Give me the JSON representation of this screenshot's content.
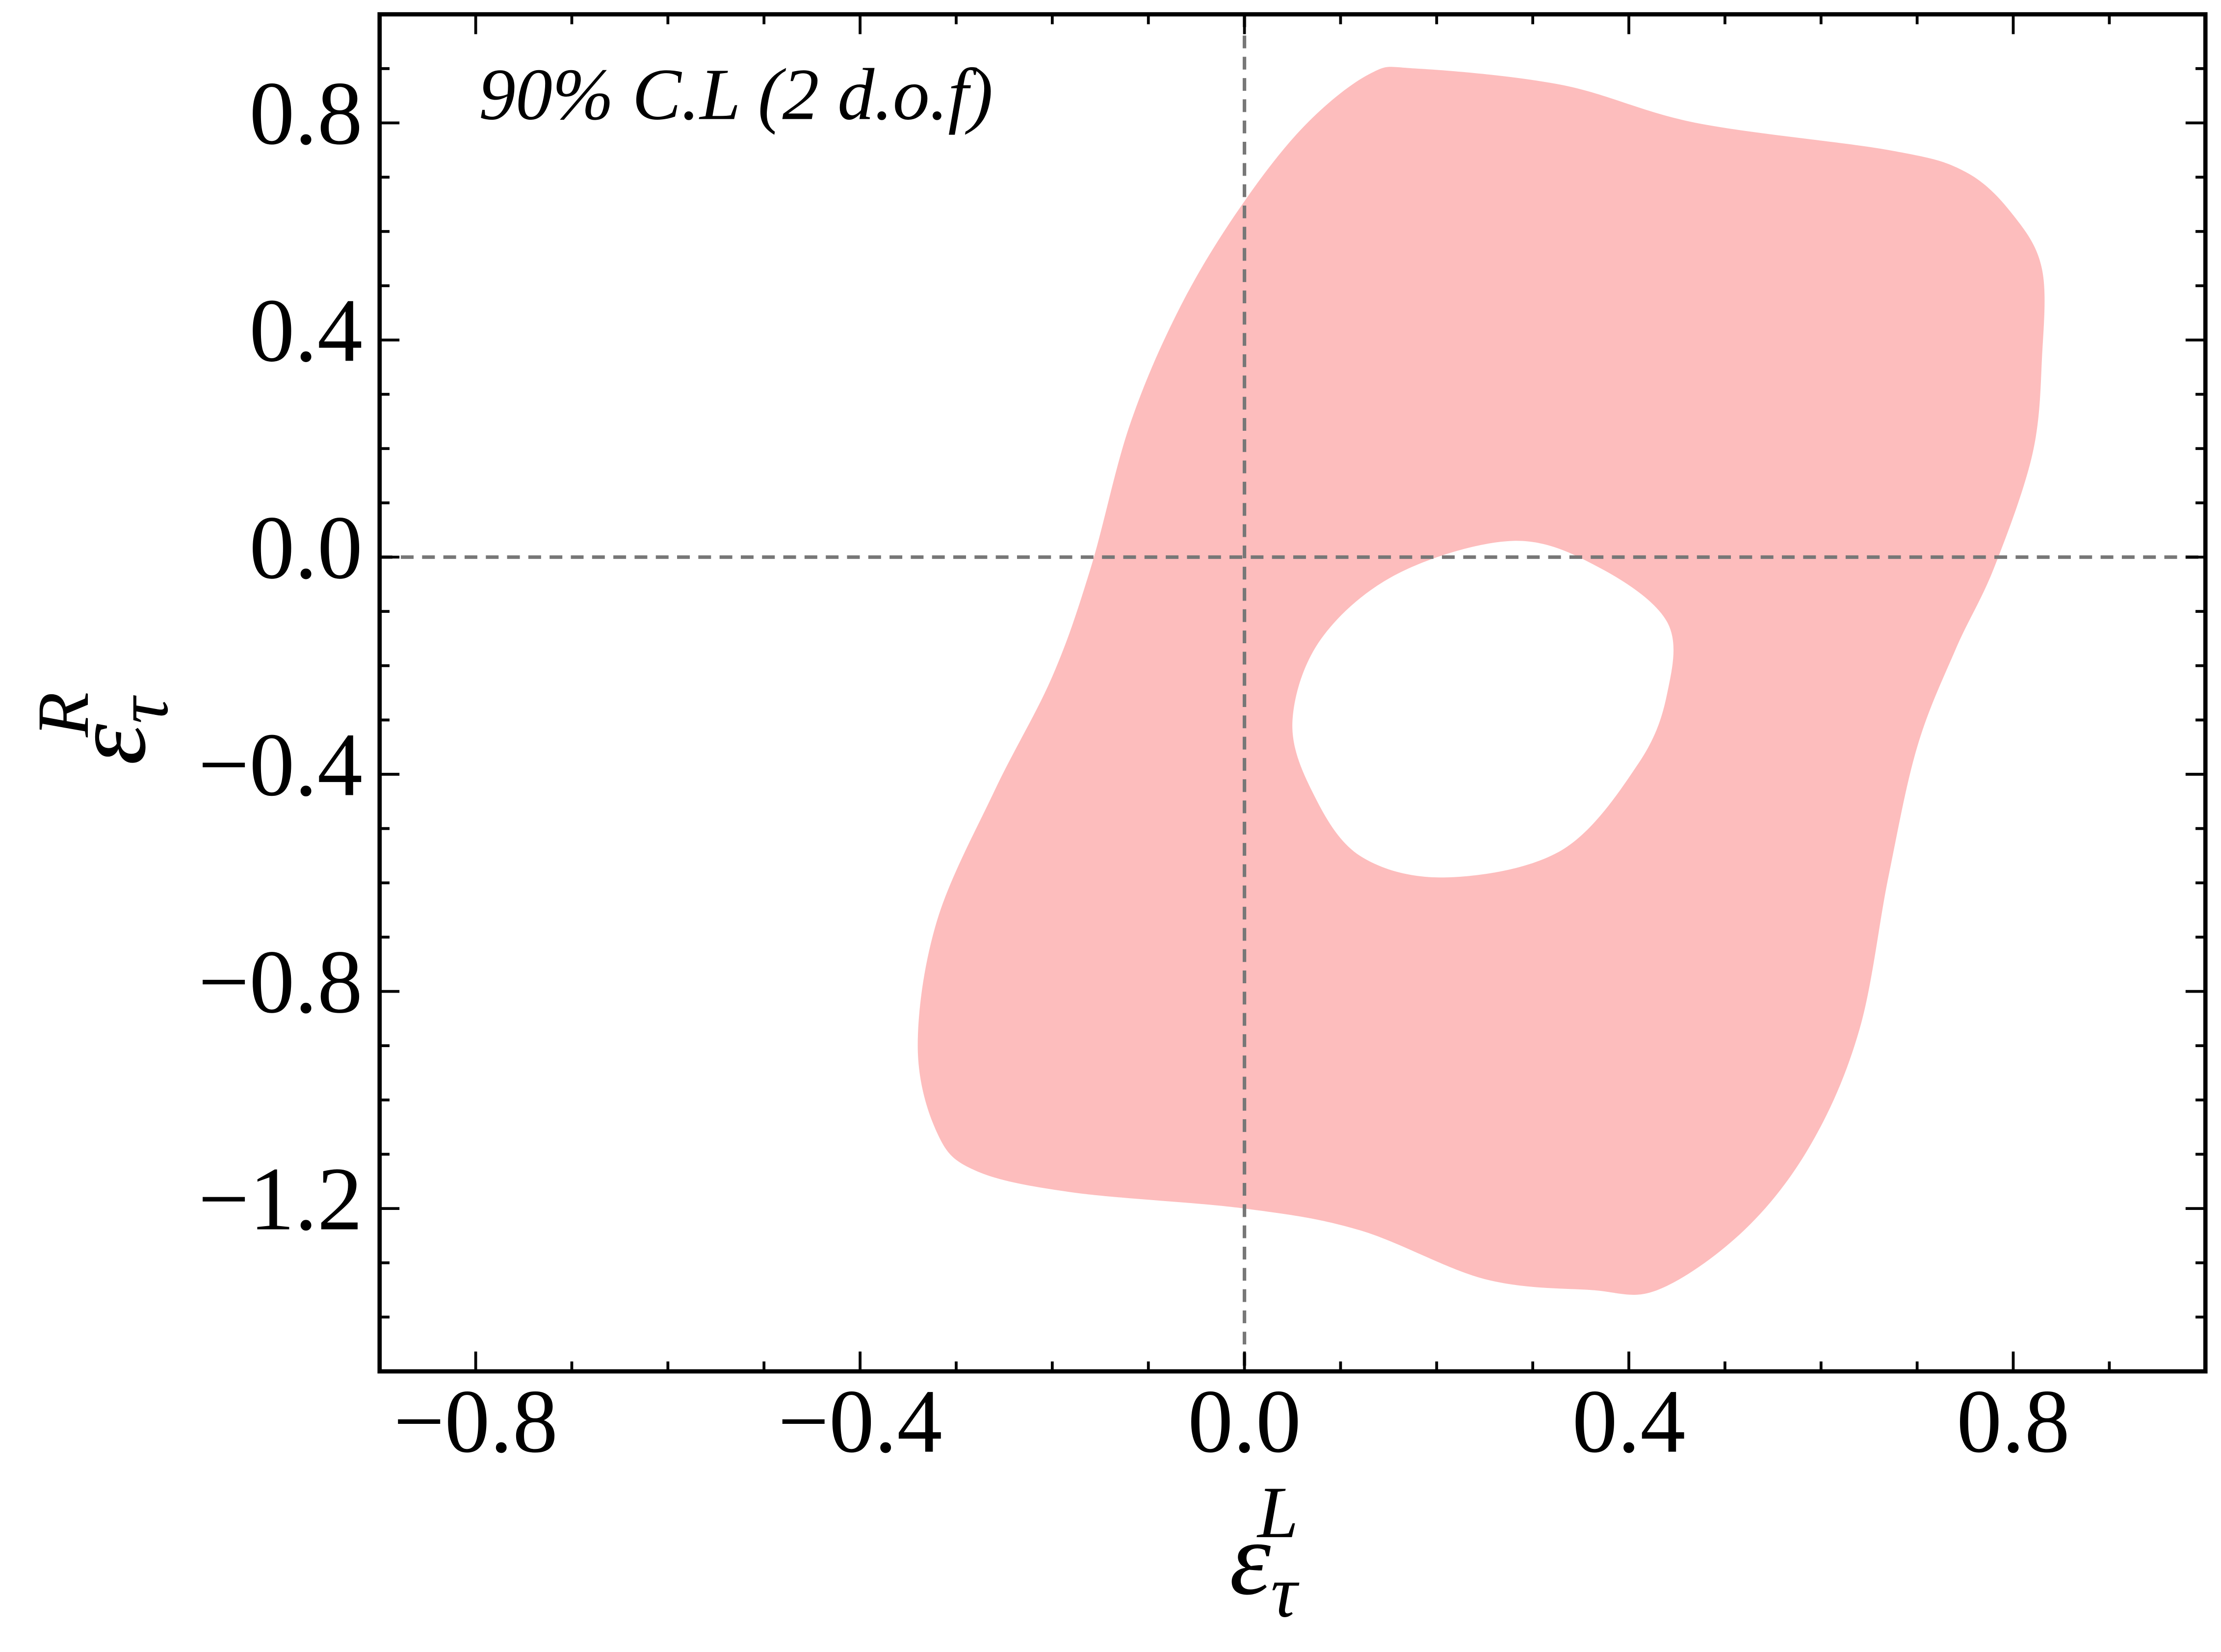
{
  "chart_data": {
    "type": "contour",
    "annotation": "90% C.L (2 d.o.f)",
    "xlabel": {
      "base": "ε",
      "sub": "τ",
      "sup": "L"
    },
    "ylabel": {
      "base": "ε",
      "sub": "τ",
      "sup": "R"
    },
    "xlim": [
      -0.9,
      1.0
    ],
    "ylim": [
      -1.5,
      1.0
    ],
    "xticks": [
      {
        "value": -0.8,
        "label": "−0.8"
      },
      {
        "value": -0.4,
        "label": "−0.4"
      },
      {
        "value": 0,
        "label": "0.0"
      },
      0.4,
      0.8
    ],
    "yticks": [
      {
        "value": -1.2,
        "label": "−1.2"
      },
      {
        "value": -0.8,
        "label": "−0.8"
      },
      {
        "value": -0.4,
        "label": "−0.4"
      },
      {
        "value": 0,
        "label": "0.0"
      },
      0.4,
      0.8
    ],
    "xminorticks": [
      -0.7,
      -0.6,
      -0.5,
      -0.3,
      -0.2,
      -0.1,
      0.1,
      0.2,
      0.3,
      0.5,
      0.6,
      0.7,
      0.9
    ],
    "yminorticks": [
      -1.4,
      -1.3,
      -1.1,
      -1.0,
      -0.9,
      -0.7,
      -0.6,
      -0.5,
      -0.3,
      -0.2,
      -0.1,
      0.1,
      0.2,
      0.3,
      0.5,
      0.6,
      0.7,
      0.9
    ],
    "hlines": [
      0
    ],
    "vlines": [
      0
    ],
    "color": "#fdbdbd",
    "boundary": {
      "x": [
        0.18,
        0.33,
        0.47,
        0.67,
        0.75,
        0.8,
        0.83,
        0.83,
        0.82,
        0.78,
        0.74,
        0.7,
        0.67,
        0.64,
        0.59,
        0.52,
        0.43,
        0.36,
        0.25,
        0.12,
        0.0,
        -0.18,
        -0.28,
        -0.32,
        -0.34,
        -0.32,
        -0.26,
        -0.2,
        -0.16,
        -0.12,
        -0.07,
        -0.01,
        0.06,
        0.13
      ],
      "y": [
        0.9,
        0.87,
        0.8,
        0.75,
        0.71,
        0.63,
        0.53,
        0.37,
        0.19,
        -0.02,
        -0.17,
        -0.35,
        -0.59,
        -0.87,
        -1.08,
        -1.24,
        -1.35,
        -1.35,
        -1.33,
        -1.24,
        -1.2,
        -1.17,
        -1.13,
        -1.06,
        -0.9,
        -0.67,
        -0.43,
        -0.22,
        -0.02,
        0.24,
        0.45,
        0.63,
        0.79,
        0.89
      ]
    },
    "hole": {
      "x": [
        0.28,
        0.37,
        0.44,
        0.44,
        0.41,
        0.33,
        0.21,
        0.12,
        0.07,
        0.05,
        0.08,
        0.16
      ],
      "y": [
        0.03,
        -0.02,
        -0.12,
        -0.25,
        -0.38,
        -0.54,
        -0.59,
        -0.55,
        -0.43,
        -0.3,
        -0.15,
        -0.03
      ]
    }
  }
}
